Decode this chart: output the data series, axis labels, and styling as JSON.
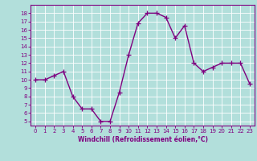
{
  "x": [
    0,
    1,
    2,
    3,
    4,
    5,
    6,
    7,
    8,
    9,
    10,
    11,
    12,
    13,
    14,
    15,
    16,
    17,
    18,
    19,
    20,
    21,
    22,
    23
  ],
  "y": [
    10,
    10,
    10.5,
    11,
    8,
    6.5,
    6.5,
    5,
    5,
    8.5,
    13,
    16.8,
    18,
    18,
    17.5,
    15,
    16.5,
    12,
    11,
    11.5,
    12,
    12,
    12,
    9.5
  ],
  "line_color": "#800080",
  "marker_color": "#800080",
  "bg_color": "#b2dfdb",
  "grid_color": "#ffffff",
  "xlabel": "Windchill (Refroidissement éolien,°C)",
  "xlabel_color": "#800080",
  "tick_color": "#800080",
  "spine_color": "#800080",
  "ylim": [
    4.5,
    19
  ],
  "xlim": [
    -0.5,
    23.5
  ],
  "yticks": [
    5,
    6,
    7,
    8,
    9,
    10,
    11,
    12,
    13,
    14,
    15,
    16,
    17,
    18
  ],
  "xticks": [
    0,
    1,
    2,
    3,
    4,
    5,
    6,
    7,
    8,
    9,
    10,
    11,
    12,
    13,
    14,
    15,
    16,
    17,
    18,
    19,
    20,
    21,
    22,
    23
  ],
  "marker_size": 4,
  "line_width": 1.0,
  "tick_fontsize": 5,
  "xlabel_fontsize": 5.5
}
